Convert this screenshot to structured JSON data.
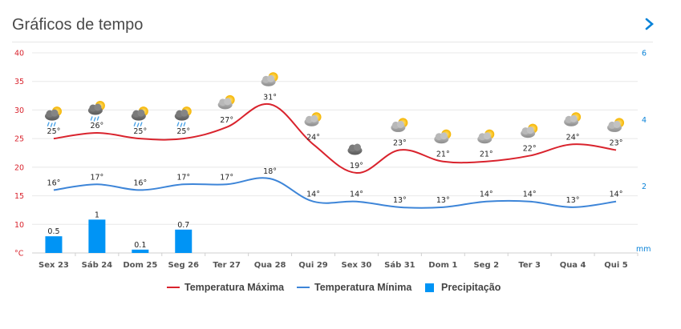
{
  "header": {
    "title": "Gráficos de tempo"
  },
  "colors": {
    "tmax": "#d9232d",
    "tmin": "#3d85d8",
    "precip": "#0094f5",
    "axisLeft": "#d9232d",
    "axisRight": "#0a83d8",
    "grid": "#e8e8e8"
  },
  "chart_data": {
    "type": "line+bar",
    "title": "Gráficos de tempo",
    "left_axis": {
      "unit": "°C",
      "ticks": [
        "40",
        "35",
        "30",
        "25",
        "20",
        "15",
        "10"
      ],
      "min": 5,
      "max": 40
    },
    "right_axis": {
      "unit": "mm",
      "ticks": [
        "6",
        "4",
        "2"
      ],
      "min": 0,
      "max": 6
    },
    "categories": [
      "Sex 23",
      "Sáb 24",
      "Dom 25",
      "Seg 26",
      "Ter 27",
      "Qua 28",
      "Qui 29",
      "Sex 30",
      "Sáb 31",
      "Dom 1",
      "Seg 2",
      "Ter 3",
      "Qua 4",
      "Qui 5"
    ],
    "icons": [
      "rain-cloud-sun",
      "rain-cloud-sun",
      "rain-cloud-sun",
      "rain-cloud-sun",
      "partly-cloudy",
      "partly-cloudy",
      "partly-cloudy",
      "cloud",
      "partly-cloudy",
      "partly-cloudy",
      "partly-cloudy",
      "partly-cloudy",
      "partly-cloudy",
      "partly-cloudy"
    ],
    "series": [
      {
        "name": "Temperatura Máxima",
        "axis": "left",
        "values": [
          25,
          26,
          25,
          25,
          27,
          31,
          24,
          19,
          23,
          21,
          21,
          22,
          24,
          23
        ],
        "labels": [
          "25°",
          "26°",
          "25°",
          "25°",
          "27°",
          "31°",
          "24°",
          "19°",
          "23°",
          "21°",
          "21°",
          "22°",
          "24°",
          "23°"
        ]
      },
      {
        "name": "Temperatura Mínima",
        "axis": "left",
        "values": [
          16,
          17,
          16,
          17,
          17,
          18,
          14,
          14,
          13,
          13,
          14,
          14,
          13,
          14
        ],
        "labels": [
          "16°",
          "17°",
          "16°",
          "17°",
          "17°",
          "18°",
          "14°",
          "14°",
          "13°",
          "13°",
          "14°",
          "14°",
          "13°",
          "14°"
        ]
      },
      {
        "name": "Precipitação",
        "axis": "right",
        "type": "bar",
        "values": [
          0.5,
          1,
          0.1,
          0.7,
          0,
          0,
          0,
          0,
          0,
          0,
          0,
          0,
          0,
          0
        ],
        "labels": [
          "0.5",
          "1",
          "0.1",
          "0.7",
          "",
          "",
          "",
          "",
          "",
          "",
          "",
          "",
          "",
          ""
        ]
      }
    ]
  },
  "legend": [
    {
      "label": "Temperatura Máxima"
    },
    {
      "label": "Temperatura Mínima"
    },
    {
      "label": "Precipitação"
    }
  ]
}
